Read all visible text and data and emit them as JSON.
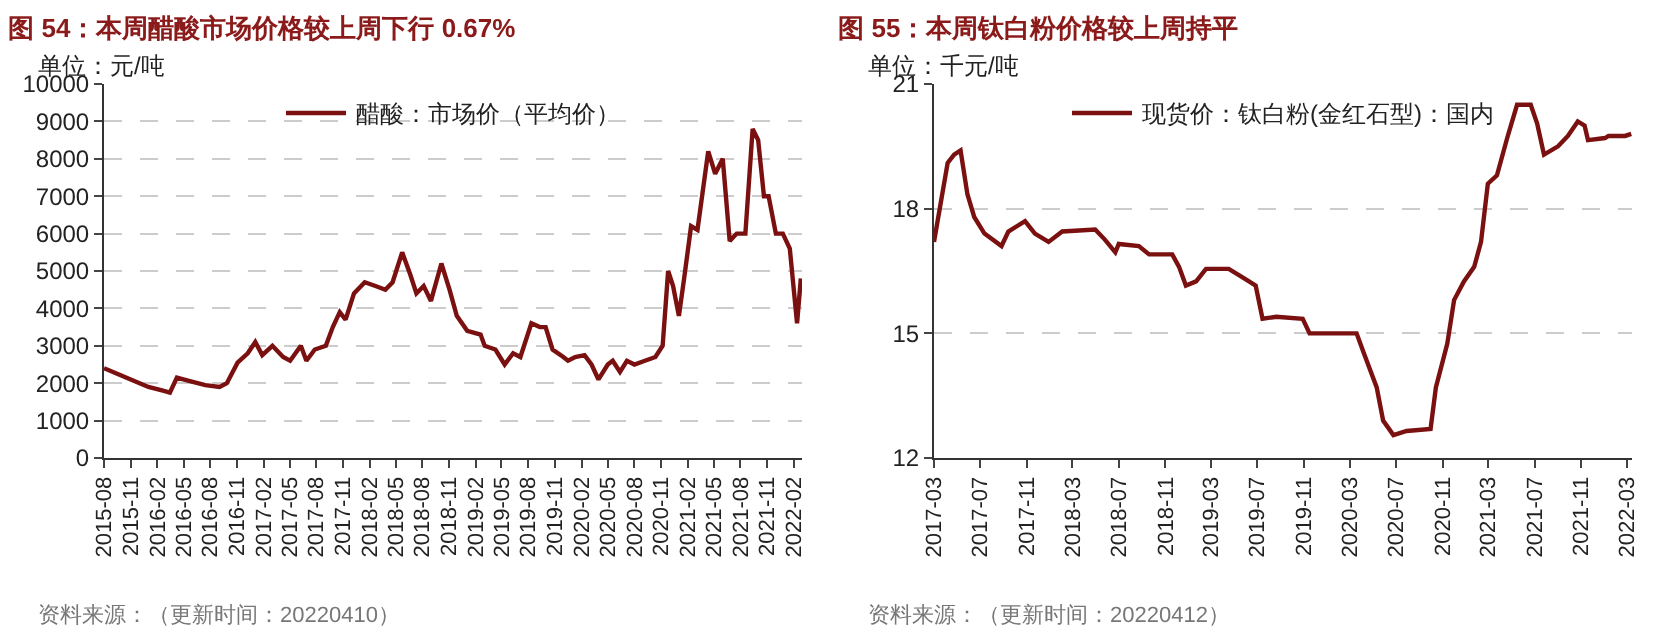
{
  "chart_data": [
    {
      "type": "line",
      "title": "图 54：本周醋酸市场价格较上周下行 0.67%",
      "ylabel": "单位：元/吨",
      "annotations": [
        "资料来源：（更新时间：20220410）"
      ],
      "legend": "top",
      "grid": "y",
      "line_style": "solid",
      "marker": "none",
      "xlim": [
        "2015-08-01",
        "2022-03-01"
      ],
      "ylim": [
        0,
        10000
      ],
      "yticks": [
        0,
        1000,
        2000,
        3000,
        4000,
        5000,
        6000,
        7000,
        8000,
        9000,
        10000
      ],
      "xticks": [
        "2015-08",
        "2015-11",
        "2016-02",
        "2016-05",
        "2016-08",
        "2016-11",
        "2017-02",
        "2017-05",
        "2017-08",
        "2017-11",
        "2018-02",
        "2018-05",
        "2018-08",
        "2018-11",
        "2019-02",
        "2019-05",
        "2019-08",
        "2019-11",
        "2020-02",
        "2020-05",
        "2020-08",
        "2020-11",
        "2021-02",
        "2021-05",
        "2021-08",
        "2021-11",
        "2022-02"
      ],
      "x": [
        "2015-08-01",
        "2015-09-01",
        "2015-11-01",
        "2016-01-01",
        "2016-02-20",
        "2016-03-15",
        "2016-04-08",
        "2016-05-26",
        "2016-07-15",
        "2016-09-02",
        "2016-09-27",
        "2016-11-03",
        "2016-12-08",
        "2017-01-03",
        "2017-01-27",
        "2017-03-03",
        "2017-04-09",
        "2017-05-03",
        "2017-06-09",
        "2017-06-28",
        "2017-07-27",
        "2017-09-03",
        "2017-09-27",
        "2017-10-21",
        "2017-11-10",
        "2017-12-09",
        "2018-01-15",
        "2018-02-21",
        "2018-03-27",
        "2018-04-21",
        "2018-05-24",
        "2018-06-21",
        "2018-07-12",
        "2018-08-06",
        "2018-08-31",
        "2018-10-06",
        "2018-11-03",
        "2018-11-28",
        "2019-01-03",
        "2019-02-18",
        "2019-03-04",
        "2019-04-10",
        "2019-05-12",
        "2019-06-10",
        "2019-07-05",
        "2019-08-12",
        "2019-09-10",
        "2019-09-30",
        "2019-10-24",
        "2019-11-30",
        "2019-12-16",
        "2020-01-10",
        "2020-02-11",
        "2020-03-06",
        "2020-03-30",
        "2020-05-01",
        "2020-05-18",
        "2020-06-12",
        "2020-07-06",
        "2020-08-01",
        "2020-09-06",
        "2020-10-12",
        "2020-11-06",
        "2020-11-25",
        "2020-12-12",
        "2021-01-01",
        "2021-01-19",
        "2021-02-12",
        "2021-03-06",
        "2021-04-12",
        "2021-05-06",
        "2021-06-01",
        "2021-06-25",
        "2021-07-19",
        "2021-08-18",
        "2021-09-12",
        "2021-10-01",
        "2021-10-21",
        "2021-11-06",
        "2021-12-01",
        "2021-12-25",
        "2022-01-18",
        "2022-02-12",
        "2022-02-25"
      ],
      "series": [
        {
          "name": "醋酸：市场价（平均价）",
          "color": "#7b1010",
          "values": [
            2400,
            2300,
            2100,
            1900,
            1800,
            1750,
            2150,
            2050,
            1950,
            1900,
            2000,
            2550,
            2800,
            3100,
            2750,
            3000,
            2700,
            2600,
            3000,
            2600,
            2900,
            3000,
            3500,
            3900,
            3700,
            4400,
            4700,
            4600,
            4500,
            4700,
            5500,
            4900,
            4400,
            4600,
            4200,
            5200,
            4500,
            3800,
            3400,
            3300,
            3000,
            2900,
            2500,
            2800,
            2700,
            3600,
            3500,
            3500,
            2900,
            2700,
            2600,
            2700,
            2750,
            2500,
            2100,
            2500,
            2600,
            2300,
            2600,
            2500,
            2600,
            2700,
            3000,
            5000,
            4600,
            3800,
            4800,
            6200,
            6100,
            8200,
            7600,
            8000,
            5800,
            6000,
            6000,
            8800,
            8500,
            7000,
            7000,
            6000,
            6000,
            5600,
            3600,
            4800
          ]
        }
      ]
    },
    {
      "type": "line",
      "title": "图 55：本周钛白粉价格较上周持平",
      "ylabel": "单位：千元/吨",
      "annotations": [
        "资料来源：（更新时间：20220412）"
      ],
      "legend": "top",
      "grid": "y",
      "line_style": "solid",
      "marker": "none",
      "xlim": [
        "2017-03-01",
        "2022-03-15"
      ],
      "ylim": [
        12,
        21
      ],
      "yticks": [
        12,
        15,
        18,
        21
      ],
      "xticks": [
        "2017-03",
        "2017-07",
        "2017-11",
        "2018-03",
        "2018-07",
        "2018-11",
        "2019-03",
        "2019-07",
        "2019-11",
        "2020-03",
        "2020-07",
        "2020-11",
        "2021-03",
        "2021-07",
        "2021-11",
        "2022-03"
      ],
      "x": [
        "2017-03-01",
        "2017-03-18",
        "2017-04-06",
        "2017-04-23",
        "2017-05-10",
        "2017-05-28",
        "2017-06-15",
        "2017-07-12",
        "2017-08-26",
        "2017-09-13",
        "2017-10-27",
        "2017-11-22",
        "2017-12-28",
        "2018-02-02",
        "2018-04-30",
        "2018-05-26",
        "2018-06-22",
        "2018-07-01",
        "2018-08-23",
        "2018-09-19",
        "2018-11-19",
        "2018-12-07",
        "2018-12-25",
        "2019-01-21",
        "2019-02-16",
        "2019-04-17",
        "2019-06-01",
        "2019-06-27",
        "2019-07-15",
        "2019-08-20",
        "2019-10-29",
        "2019-11-16",
        "2020-03-19",
        "2020-04-06",
        "2020-05-11",
        "2020-05-28",
        "2020-06-24",
        "2020-07-29",
        "2020-09-30",
        "2020-10-14",
        "2020-11-13",
        "2020-12-01",
        "2020-12-27",
        "2021-01-23",
        "2021-02-10",
        "2021-02-28",
        "2021-03-24",
        "2021-04-20",
        "2021-05-16",
        "2021-06-21",
        "2021-07-08",
        "2021-07-26",
        "2021-09-01",
        "2021-09-27",
        "2021-10-23",
        "2021-11-10",
        "2021-11-19",
        "2022-01-03",
        "2022-01-12",
        "2022-02-25",
        "2022-03-13"
      ],
      "series": [
        {
          "name": "现货价：钛白粉(金红石型)：国内",
          "color": "#7b1010",
          "values": [
            17.2,
            18.1,
            19.1,
            19.3,
            19.4,
            18.35,
            17.8,
            17.4,
            17.1,
            17.45,
            17.7,
            17.4,
            17.2,
            17.45,
            17.5,
            17.25,
            16.95,
            17.15,
            17.1,
            16.9,
            16.9,
            16.6,
            16.15,
            16.25,
            16.55,
            16.55,
            16.3,
            16.15,
            15.35,
            15.4,
            15.35,
            15.0,
            15.0,
            14.55,
            13.7,
            12.9,
            12.55,
            12.65,
            12.7,
            13.7,
            14.75,
            15.8,
            16.25,
            16.6,
            17.2,
            18.6,
            18.8,
            19.7,
            20.5,
            20.5,
            20.05,
            19.3,
            19.5,
            19.75,
            20.1,
            20.0,
            19.65,
            19.7,
            19.75,
            19.75,
            19.8
          ]
        }
      ]
    }
  ]
}
